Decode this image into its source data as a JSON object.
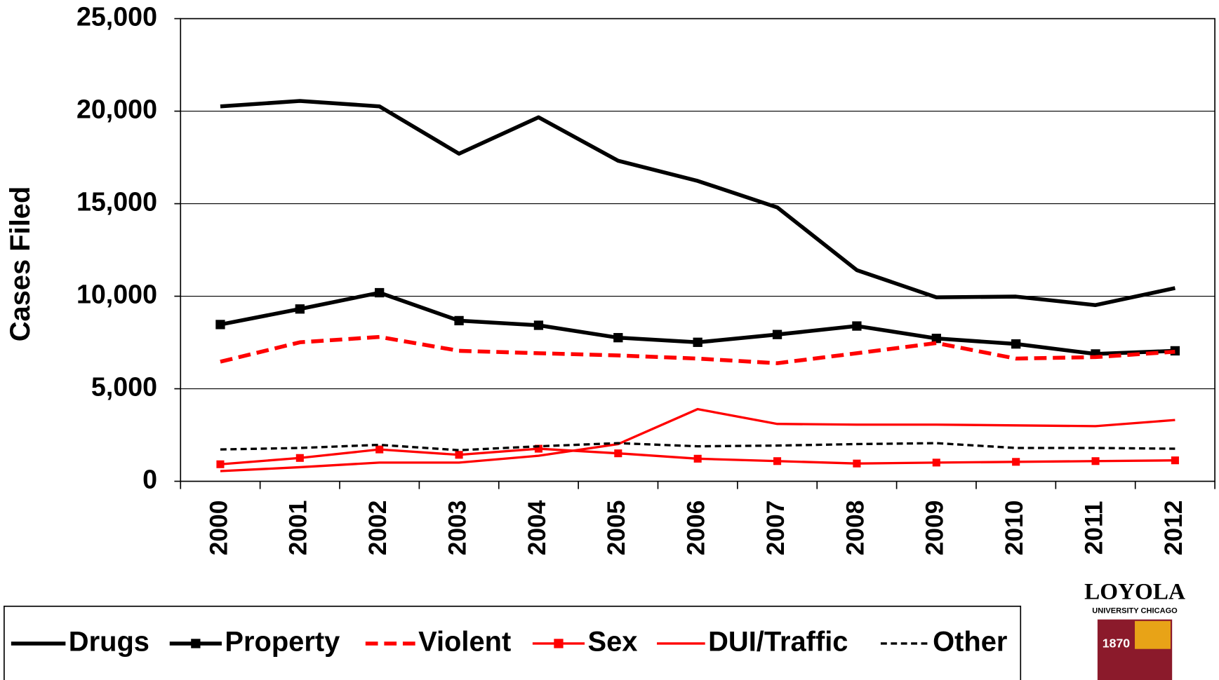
{
  "chart_data": {
    "type": "line",
    "y_label": "Cases Filed",
    "categories": [
      "2000",
      "2001",
      "2002",
      "2003",
      "2004",
      "2005",
      "2006",
      "2007",
      "2008",
      "2009",
      "2010",
      "2011",
      "2012"
    ],
    "series": [
      {
        "name": "Drugs",
        "color": "#000000",
        "line_style": "solid",
        "width": 5,
        "marker": "none",
        "values": [
          20260,
          20550,
          20260,
          17700,
          19670,
          17320,
          16230,
          14800,
          11410,
          9940,
          9980,
          9520,
          10440
        ]
      },
      {
        "name": "Property",
        "color": "#000000",
        "line_style": "solid",
        "width": 5,
        "marker": "square",
        "values": [
          8470,
          9310,
          10190,
          8680,
          8430,
          7760,
          7510,
          7930,
          8390,
          7720,
          7420,
          6880,
          7050
        ]
      },
      {
        "name": "Violent",
        "color": "#ff0000",
        "line_style": "dashed",
        "width": 5,
        "marker": "none",
        "values": [
          6460,
          7510,
          7800,
          7050,
          6920,
          6800,
          6630,
          6380,
          6920,
          7470,
          6630,
          6710,
          7000
        ]
      },
      {
        "name": "Sex",
        "color": "#ff0000",
        "line_style": "solid",
        "width": 3,
        "marker": "square",
        "values": [
          920,
          1260,
          1720,
          1430,
          1760,
          1510,
          1220,
          1090,
          960,
          1010,
          1050,
          1090,
          1130
        ]
      },
      {
        "name": "DUI/Traffic",
        "color": "#ff0000",
        "line_style": "solid",
        "width": 3,
        "marker": "none",
        "values": [
          550,
          760,
          1010,
          1010,
          1380,
          2010,
          3900,
          3100,
          3060,
          3060,
          3020,
          2980,
          3310
        ]
      },
      {
        "name": "Other",
        "color": "#000000",
        "line_style": "dotted",
        "width": 3,
        "marker": "none",
        "values": [
          1720,
          1800,
          1970,
          1680,
          1890,
          2060,
          1890,
          1930,
          2010,
          2060,
          1800,
          1800,
          1760
        ]
      }
    ],
    "ylim": [
      0,
      25000
    ],
    "yticks": [
      0,
      {
        "value": 5000,
        "label": "5,000"
      },
      {
        "value": 10000,
        "label": "10,000"
      },
      {
        "value": 15000,
        "label": "15,000"
      },
      {
        "value": 20000,
        "label": "20,000"
      },
      {
        "value": 25000,
        "label": "25,000"
      }
    ],
    "grid": true,
    "legend": "bottom"
  },
  "logo": {
    "name": "LOYOLA",
    "subtitle": "UNIVERSITY CHICAGO",
    "year": "1870"
  }
}
